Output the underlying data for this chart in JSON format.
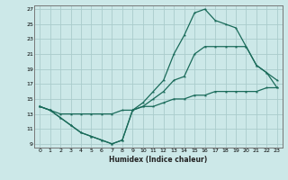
{
  "xlabel": "Humidex (Indice chaleur)",
  "bg_color": "#cce8e8",
  "grid_color": "#aacccc",
  "line_color": "#1a6b5a",
  "xlim": [
    -0.5,
    23.5
  ],
  "ylim": [
    8.5,
    27.5
  ],
  "xticks": [
    0,
    1,
    2,
    3,
    4,
    5,
    6,
    7,
    8,
    9,
    10,
    11,
    12,
    13,
    14,
    15,
    16,
    17,
    18,
    19,
    20,
    21,
    22,
    23
  ],
  "yticks": [
    9,
    11,
    13,
    15,
    17,
    19,
    21,
    23,
    25,
    27
  ],
  "line1_x": [
    0,
    1,
    2,
    3,
    4,
    5,
    6,
    7,
    8,
    9,
    10,
    11,
    12,
    13,
    14,
    15,
    16,
    17,
    18,
    19,
    20,
    21,
    22,
    23
  ],
  "line1_y": [
    14,
    13.5,
    13,
    13,
    13,
    13,
    13,
    13,
    13.5,
    13.5,
    14,
    14,
    14.5,
    15,
    15,
    15.5,
    15.5,
    16,
    16,
    16,
    16,
    16,
    16.5,
    16.5
  ],
  "line2_x": [
    0,
    1,
    2,
    3,
    4,
    5,
    6,
    7,
    8,
    9,
    10,
    11,
    12,
    13,
    14,
    15,
    16,
    17,
    18,
    19,
    20,
    21,
    22,
    23
  ],
  "line2_y": [
    14,
    13.5,
    12.5,
    11.5,
    10.5,
    10,
    9.5,
    9,
    9.5,
    13.5,
    14,
    15,
    16,
    17.5,
    18,
    21,
    22,
    22,
    22,
    22,
    22,
    19.5,
    18.5,
    17.5
  ],
  "line3_x": [
    0,
    1,
    2,
    3,
    4,
    5,
    6,
    7,
    8,
    9,
    10,
    11,
    12,
    13,
    14,
    15,
    16,
    17,
    18,
    19,
    20,
    21,
    22,
    23
  ],
  "line3_y": [
    14,
    13.5,
    12.5,
    11.5,
    10.5,
    10,
    9.5,
    9,
    9.5,
    13.5,
    14.5,
    16,
    17.5,
    21,
    23.5,
    26.5,
    27,
    25.5,
    25,
    24.5,
    22,
    19.5,
    18.5,
    16.5
  ]
}
